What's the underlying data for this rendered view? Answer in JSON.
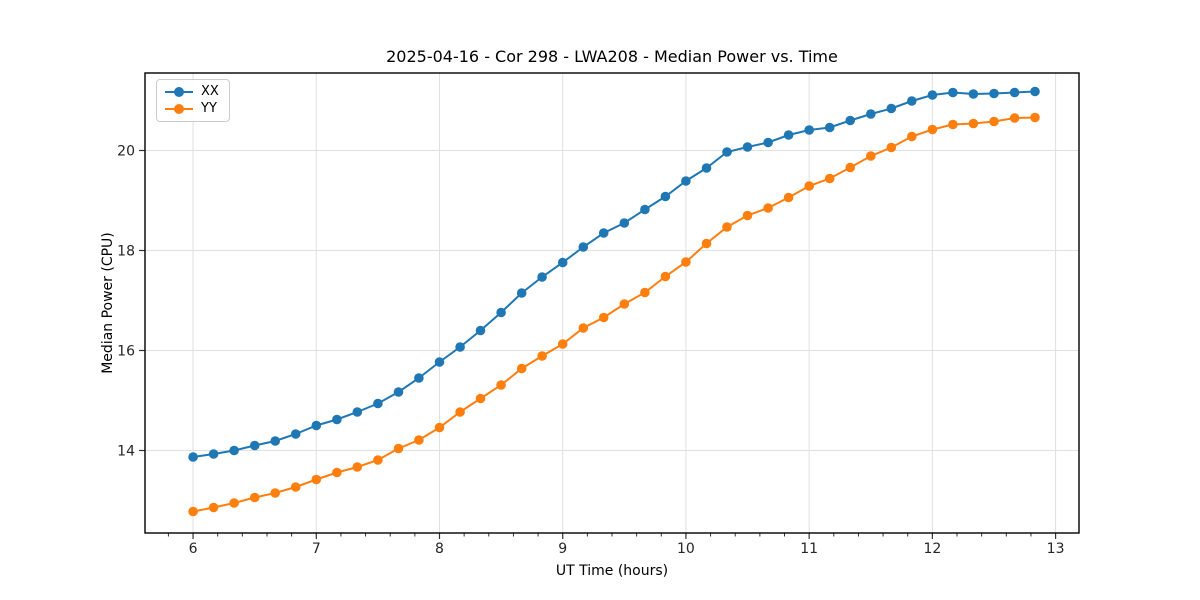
{
  "chart_data": {
    "type": "line",
    "title": "2025-04-16 - Cor 298 - LWA208 - Median Power vs. Time",
    "xlabel": "UT Time (hours)",
    "ylabel": "Median Power (CPU)",
    "xlim": [
      5.61,
      13.19
    ],
    "ylim": [
      12.35,
      21.55
    ],
    "xticks": [
      6,
      7,
      8,
      9,
      10,
      11,
      12,
      13
    ],
    "yticks": [
      14,
      16,
      18,
      20
    ],
    "x_minor_tick_step": 0.2,
    "grid": true,
    "grid_color": "#e0e0e0",
    "legend_position": "upper left",
    "x": [
      6.0,
      6.167,
      6.333,
      6.5,
      6.667,
      6.833,
      7.0,
      7.167,
      7.333,
      7.5,
      7.667,
      7.833,
      8.0,
      8.167,
      8.333,
      8.5,
      8.667,
      8.833,
      9.0,
      9.167,
      9.333,
      9.5,
      9.667,
      9.833,
      10.0,
      10.167,
      10.333,
      10.5,
      10.667,
      10.833,
      11.0,
      11.167,
      11.333,
      11.5,
      11.667,
      11.833,
      12.0,
      12.167,
      12.333,
      12.5,
      12.667,
      12.833
    ],
    "series": [
      {
        "name": "XX",
        "color": "#1f77b4",
        "values": [
          13.87,
          13.93,
          14.0,
          14.1,
          14.19,
          14.33,
          14.5,
          14.62,
          14.77,
          14.94,
          15.17,
          15.45,
          15.77,
          16.07,
          16.4,
          16.76,
          17.15,
          17.47,
          17.76,
          18.07,
          18.35,
          18.55,
          18.82,
          19.08,
          19.39,
          19.65,
          19.97,
          20.07,
          20.16,
          20.31,
          20.41,
          20.46,
          20.6,
          20.73,
          20.84,
          20.99,
          21.11,
          21.16,
          21.13,
          21.14,
          21.16,
          21.18
        ]
      },
      {
        "name": "YY",
        "color": "#ff7f0e",
        "values": [
          12.78,
          12.86,
          12.95,
          13.06,
          13.15,
          13.27,
          13.42,
          13.56,
          13.67,
          13.81,
          14.04,
          14.21,
          14.46,
          14.77,
          15.04,
          15.31,
          15.64,
          15.89,
          16.13,
          16.45,
          16.66,
          16.93,
          17.16,
          17.48,
          17.77,
          18.14,
          18.47,
          18.7,
          18.85,
          19.06,
          19.29,
          19.44,
          19.66,
          19.89,
          20.06,
          20.28,
          20.42,
          20.52,
          20.54,
          20.58,
          20.65,
          20.66
        ]
      }
    ]
  },
  "style": {
    "spine_color": "#000000",
    "tick_color": "#333333",
    "tick_label_color": "#262626",
    "marker_radius": 4.8,
    "line_width": 2
  }
}
